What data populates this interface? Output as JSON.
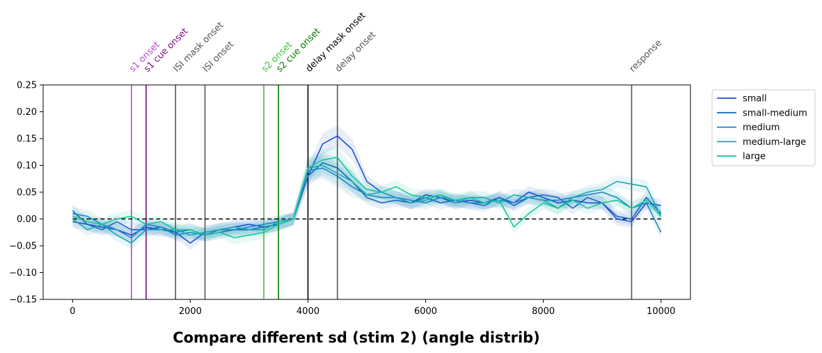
{
  "chart_data": {
    "type": "line",
    "title": "Compare different sd (stim 2) (angle distrib)",
    "xlabel": "",
    "ylabel": "",
    "xlim": [
      -500,
      10500
    ],
    "ylim": [
      -0.15,
      0.25
    ],
    "xticks": [
      0,
      2000,
      4000,
      6000,
      8000,
      10000
    ],
    "yticks": [
      -0.15,
      -0.1,
      -0.05,
      0.0,
      0.05,
      0.1,
      0.15,
      0.2,
      0.25
    ],
    "ytick_labels": [
      "−0.15",
      "−0.10",
      "−0.05",
      "0.00",
      "0.05",
      "0.10",
      "0.15",
      "0.20",
      "0.25"
    ],
    "grid": false,
    "legend_position": "outside-right",
    "reference_line": {
      "y": 0,
      "style": "dashed",
      "color": "#000000"
    },
    "events": [
      {
        "x": 1000,
        "label": "s1 onset",
        "color": "#b64ad0"
      },
      {
        "x": 1250,
        "label": "s1 cue onset",
        "color": "#7b0c7b"
      },
      {
        "x": 1750,
        "label": "ISI mask onset",
        "color": "#555555"
      },
      {
        "x": 2250,
        "label": "ISI onset",
        "color": "#555555"
      },
      {
        "x": 3250,
        "label": "s2 onset",
        "color": "#3fbf3f"
      },
      {
        "x": 3500,
        "label": "s2 cue onset",
        "color": "#007a00"
      },
      {
        "x": 4000,
        "label": "delay mask onset",
        "color": "#000000"
      },
      {
        "x": 4500,
        "label": "delay onset",
        "color": "#555555"
      },
      {
        "x": 9500,
        "label": "response",
        "color": "#555555"
      }
    ],
    "x": [
      0,
      250,
      500,
      750,
      1000,
      1250,
      1500,
      1750,
      2000,
      2250,
      2500,
      2750,
      3000,
      3250,
      3500,
      3750,
      4000,
      4250,
      4500,
      4750,
      5000,
      5250,
      5500,
      5750,
      6000,
      6250,
      6500,
      6750,
      7000,
      7250,
      7500,
      7750,
      8000,
      8250,
      8500,
      8750,
      9000,
      9250,
      9500,
      9750,
      10000
    ],
    "series": [
      {
        "name": "small",
        "color": "#1f4fd0",
        "values": [
          -0.005,
          -0.01,
          -0.015,
          -0.02,
          -0.03,
          -0.015,
          -0.02,
          -0.025,
          -0.045,
          -0.025,
          -0.02,
          -0.015,
          -0.01,
          -0.015,
          -0.01,
          0.0,
          0.08,
          0.14,
          0.155,
          0.13,
          0.07,
          0.05,
          0.04,
          0.03,
          0.045,
          0.04,
          0.03,
          0.035,
          0.03,
          0.04,
          0.03,
          0.05,
          0.04,
          0.03,
          0.035,
          0.03,
          0.03,
          0.0,
          -0.005,
          0.03,
          0.025
        ]
      },
      {
        "name": "small-medium",
        "color": "#1468c0",
        "values": [
          0.015,
          -0.01,
          -0.02,
          -0.005,
          -0.02,
          -0.02,
          -0.015,
          -0.025,
          -0.02,
          -0.03,
          -0.025,
          -0.02,
          -0.02,
          -0.015,
          -0.01,
          0.0,
          0.08,
          0.105,
          0.095,
          0.07,
          0.04,
          0.03,
          0.035,
          0.03,
          0.04,
          0.03,
          0.035,
          0.03,
          0.025,
          0.04,
          0.025,
          0.04,
          0.045,
          0.04,
          0.02,
          0.04,
          0.03,
          0.005,
          0.0,
          0.04,
          0.01
        ]
      },
      {
        "name": "medium",
        "color": "#1a86c4",
        "values": [
          0.01,
          0.005,
          -0.01,
          -0.02,
          -0.035,
          -0.01,
          -0.015,
          -0.03,
          -0.025,
          -0.03,
          -0.02,
          -0.02,
          -0.015,
          -0.01,
          -0.005,
          0.0,
          0.09,
          0.095,
          0.08,
          0.06,
          0.045,
          0.04,
          0.04,
          0.035,
          0.03,
          0.04,
          0.035,
          0.03,
          0.03,
          0.035,
          0.03,
          0.04,
          0.035,
          0.035,
          0.04,
          0.045,
          0.05,
          0.04,
          0.02,
          0.03,
          -0.025
        ]
      },
      {
        "name": "medium-large",
        "color": "#18a8b0",
        "values": [
          0.0,
          -0.02,
          -0.01,
          -0.03,
          -0.045,
          -0.02,
          -0.02,
          -0.02,
          -0.03,
          -0.025,
          -0.02,
          -0.015,
          -0.02,
          -0.02,
          -0.005,
          0.0,
          0.095,
          0.1,
          0.085,
          0.07,
          0.045,
          0.05,
          0.04,
          0.03,
          0.035,
          0.045,
          0.03,
          0.04,
          0.04,
          0.03,
          0.045,
          0.04,
          0.035,
          0.02,
          0.04,
          0.05,
          0.055,
          0.07,
          0.065,
          0.06,
          0.005
        ]
      },
      {
        "name": "large",
        "color": "#14c898",
        "values": [
          0.005,
          -0.005,
          -0.01,
          0.0,
          0.005,
          -0.01,
          -0.005,
          -0.02,
          -0.02,
          -0.03,
          -0.025,
          -0.035,
          -0.03,
          -0.025,
          -0.01,
          0.0,
          0.095,
          0.11,
          0.115,
          0.08,
          0.055,
          0.05,
          0.06,
          0.045,
          0.04,
          0.045,
          0.035,
          0.04,
          0.03,
          0.035,
          -0.015,
          0.01,
          0.03,
          0.02,
          0.035,
          0.02,
          0.03,
          0.035,
          0.02,
          0.035,
          0.005
        ]
      }
    ]
  }
}
